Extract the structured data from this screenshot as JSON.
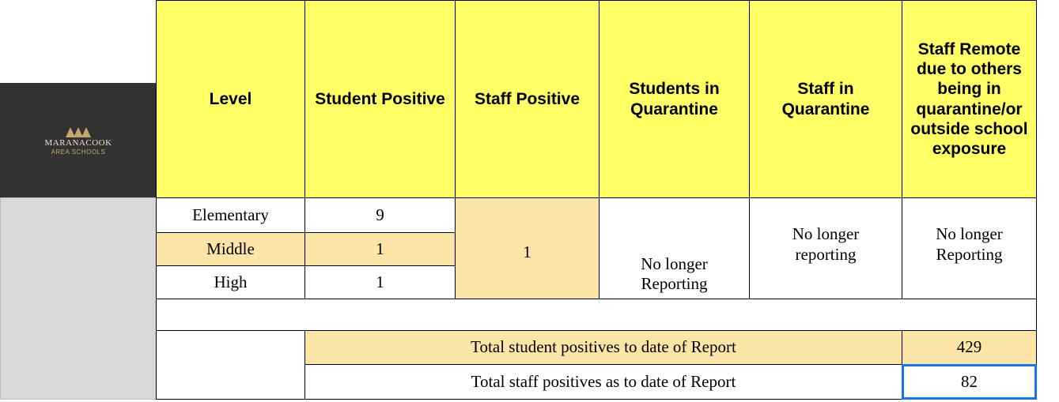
{
  "logo": {
    "name": "MARANACOOK",
    "subtitle": "AREA SCHOOLS"
  },
  "table": {
    "header": [
      "Level",
      "Student Positive",
      "Staff Positive",
      "Students in Quarantine",
      "Staff in Quarantine",
      "Staff Remote due to others being in quarantine/or outside school exposure"
    ],
    "rows": [
      {
        "level": "Elementary",
        "student_positive": "9"
      },
      {
        "level": "Middle",
        "student_positive": "1"
      },
      {
        "level": "High",
        "student_positive": "1"
      }
    ],
    "staff_positive": "1",
    "students_in_quarantine": "No longer Reporting",
    "staff_in_quarantine": "No longer reporting",
    "staff_remote": "No longer Reporting",
    "totals": [
      {
        "label": "Total student positives to date of Report",
        "value": "429"
      },
      {
        "label": "Total staff positives as to date of Report",
        "value": "82"
      }
    ]
  }
}
